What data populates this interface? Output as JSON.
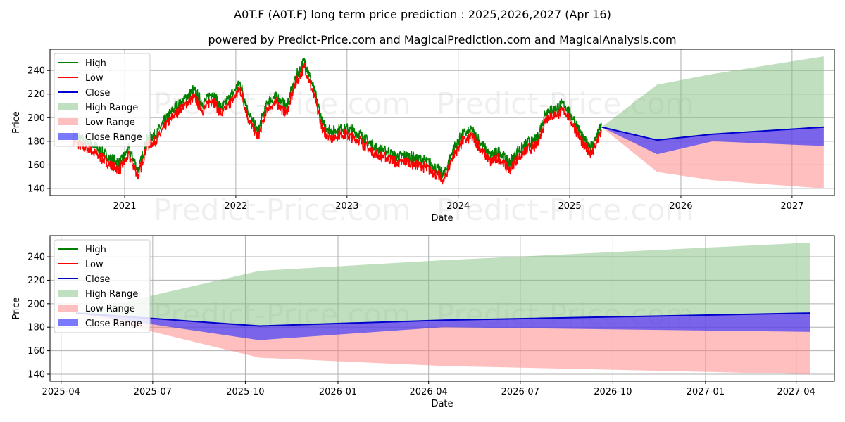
{
  "title": "A0T.F (A0T.F) long term price prediction : 2025,2026,2027 (Apr 16)",
  "subtitle": "powered by Predict-Price.com and MagicalPrediction.com and MagicalAnalysis.com",
  "watermark": "Predict-Price.com",
  "colors": {
    "high": "#008000",
    "low": "#ff0000",
    "close": "#0000cd",
    "high_range": "#7fbf7f",
    "low_range": "#ff8080",
    "close_range": "#3333ff",
    "grid": "#b0b0b0"
  },
  "chart_data": [
    {
      "type": "line",
      "panel": "top",
      "xlabel": "Date",
      "ylabel": "Price",
      "grid": true,
      "legend": "top-left",
      "x_ticks": [
        "2021",
        "2022",
        "2023",
        "2024",
        "2025",
        "2026",
        "2027"
      ],
      "y_ticks": [
        140,
        160,
        180,
        200,
        220,
        240
      ],
      "xlim": [
        "2020-05-01",
        "2027-05-20"
      ],
      "ylim": [
        134,
        258
      ],
      "legend_entries": [
        "High",
        "Low",
        "Close",
        "High Range",
        "Low Range",
        "Close Range"
      ],
      "history": {
        "dates": [
          "2020-07-15",
          "2020-08-15",
          "2020-09-15",
          "2020-10-15",
          "2020-11-15",
          "2020-12-15",
          "2021-01-15",
          "2021-02-15",
          "2021-03-15",
          "2021-04-15",
          "2021-05-15",
          "2021-06-15",
          "2021-07-15",
          "2021-08-15",
          "2021-09-15",
          "2021-10-15",
          "2021-11-15",
          "2021-12-15",
          "2022-01-15",
          "2022-02-15",
          "2022-03-15",
          "2022-04-15",
          "2022-05-15",
          "2022-06-15",
          "2022-07-15",
          "2022-08-15",
          "2022-09-15",
          "2022-10-15",
          "2022-11-15",
          "2022-12-15",
          "2023-01-15",
          "2023-02-15",
          "2023-03-15",
          "2023-04-15",
          "2023-05-15",
          "2023-06-15",
          "2023-07-15",
          "2023-08-15",
          "2023-09-15",
          "2023-10-15",
          "2023-11-15",
          "2023-12-15",
          "2024-01-15",
          "2024-02-15",
          "2024-03-15",
          "2024-04-15",
          "2024-05-15",
          "2024-06-15",
          "2024-07-15",
          "2024-08-15",
          "2024-09-15",
          "2024-10-15",
          "2024-11-15",
          "2024-12-15",
          "2025-01-15",
          "2025-02-15",
          "2025-03-15",
          "2025-04-15"
        ],
        "close": [
          182,
          178,
          174,
          168,
          162,
          158,
          170,
          152,
          178,
          183,
          195,
          205,
          212,
          220,
          208,
          218,
          205,
          215,
          226,
          198,
          185,
          210,
          215,
          205,
          230,
          245,
          220,
          190,
          185,
          188,
          186,
          182,
          175,
          170,
          168,
          163,
          165,
          162,
          160,
          155,
          148,
          170,
          182,
          186,
          175,
          165,
          168,
          158,
          168,
          175,
          178,
          202,
          205,
          208,
          195,
          178,
          172,
          190
        ]
      },
      "forecast": {
        "dates": [
          "2025-04-16",
          "2025-10-15",
          "2026-04-15",
          "2027-04-15"
        ],
        "close": [
          192,
          181,
          186,
          192
        ],
        "high_range_upper": [
          192,
          228,
          237,
          252
        ],
        "low_range_lower": [
          192,
          154,
          147,
          140
        ],
        "close_range_lower": [
          192,
          169,
          180,
          176
        ]
      }
    },
    {
      "type": "line",
      "panel": "bottom",
      "xlabel": "Date",
      "ylabel": "Price",
      "grid": true,
      "legend": "top-left",
      "x_ticks": [
        "2025-04",
        "2025-07",
        "2025-10",
        "2026-01",
        "2026-04",
        "2026-07",
        "2026-10",
        "2027-01",
        "2027-04"
      ],
      "y_ticks": [
        140,
        160,
        180,
        200,
        220,
        240
      ],
      "xlim": [
        "2025-03-21",
        "2027-05-09"
      ],
      "ylim": [
        134,
        258
      ],
      "legend_entries": [
        "High",
        "Low",
        "Close",
        "High Range",
        "Low Range",
        "Close Range"
      ],
      "forecast": {
        "dates": [
          "2025-04-16",
          "2025-10-15",
          "2026-04-15",
          "2027-04-15"
        ],
        "close": [
          192,
          181,
          186,
          192
        ],
        "high_range_upper": [
          192,
          228,
          237,
          252
        ],
        "low_range_lower": [
          192,
          154,
          147,
          140
        ],
        "close_range_lower": [
          192,
          169,
          180,
          176
        ]
      }
    }
  ]
}
